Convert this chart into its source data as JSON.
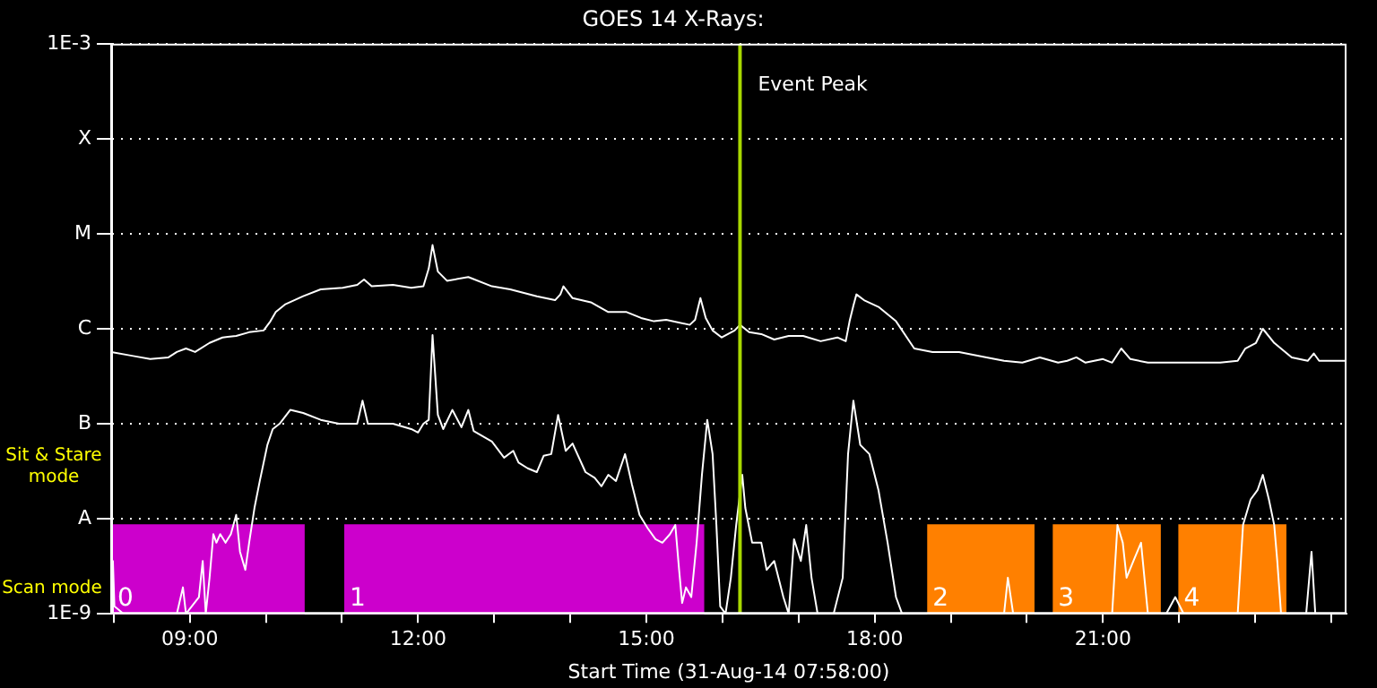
{
  "chart_data": {
    "type": "line",
    "title": "GOES 14 X-Rays:",
    "xlabel": "Start Time (31-Aug-14 07:58:00)",
    "annotations": [
      "Sit & Stare mode",
      "Scan mode"
    ],
    "log": "y",
    "grid": "y",
    "legend": false,
    "marker": "none",
    "line_style": "solid",
    "xlim": [
      7.967,
      24.2
    ],
    "xticks": [
      {
        "value": 8,
        "label": null
      },
      {
        "value": 9,
        "label": "09:00"
      },
      {
        "value": 10,
        "label": null
      },
      {
        "value": 11,
        "label": null
      },
      {
        "value": 12,
        "label": "12:00"
      },
      {
        "value": 13,
        "label": null
      },
      {
        "value": 14,
        "label": null
      },
      {
        "value": 15,
        "label": "15:00"
      },
      {
        "value": 16,
        "label": null
      },
      {
        "value": 17,
        "label": null
      },
      {
        "value": 18,
        "label": "18:00"
      },
      {
        "value": 19,
        "label": null
      },
      {
        "value": 20,
        "label": null
      },
      {
        "value": 21,
        "label": "21:00"
      },
      {
        "value": 22,
        "label": null
      },
      {
        "value": 23,
        "label": null
      },
      {
        "value": 24,
        "label": null
      }
    ],
    "ylim": [
      1e-09,
      0.001
    ],
    "yticks": [
      {
        "value": 1e-09,
        "label": "1E-9"
      },
      {
        "value": 1e-08,
        "label": "A"
      },
      {
        "value": 1e-07,
        "label": "B"
      },
      {
        "value": 1e-06,
        "label": "C"
      },
      {
        "value": 1e-05,
        "label": "M"
      },
      {
        "value": 0.0001,
        "label": "X"
      },
      {
        "value": 0.001,
        "label": "1E-3"
      }
    ],
    "ref_lines": [
      {
        "axis": "x",
        "value": 16.23,
        "label": "Event Peak",
        "color": "#a8d800"
      }
    ],
    "bands": [
      {
        "axis": "x",
        "from": 7.98,
        "to": 10.51,
        "label": "0",
        "color": "#cc00cc"
      },
      {
        "axis": "x",
        "from": 11.03,
        "to": 15.76,
        "label": "1",
        "color": "#cc00cc"
      },
      {
        "axis": "x",
        "from": 18.69,
        "to": 20.1,
        "label": "2",
        "color": "#ff8000"
      },
      {
        "axis": "x",
        "from": 20.34,
        "to": 21.76,
        "label": "3",
        "color": "#ff8000"
      },
      {
        "axis": "x",
        "from": 21.99,
        "to": 23.41,
        "label": "4",
        "color": "#ff8000"
      }
    ],
    "series": [
      {
        "color": "#ffffff",
        "x": [
          7.97,
          8.24,
          8.48,
          8.72,
          8.83,
          8.95,
          9.07,
          9.26,
          9.43,
          9.61,
          9.78,
          9.97,
          10.06,
          10.13,
          10.25,
          10.49,
          10.72,
          11.01,
          11.2,
          11.29,
          11.39,
          11.67,
          11.91,
          12.07,
          12.14,
          12.19,
          12.26,
          12.38,
          12.66,
          12.97,
          13.21,
          13.56,
          13.8,
          13.87,
          13.91,
          14.03,
          14.27,
          14.5,
          14.74,
          14.93,
          15.1,
          15.26,
          15.57,
          15.64,
          15.71,
          15.78,
          15.87,
          15.99,
          16.16,
          16.23,
          16.35,
          16.51,
          16.68,
          16.87,
          17.06,
          17.29,
          17.51,
          17.62,
          17.67,
          17.72,
          17.76,
          17.86,
          18.05,
          18.28,
          18.52,
          18.76,
          19.11,
          19.47,
          19.7,
          19.94,
          20.17,
          20.41,
          20.53,
          20.65,
          20.77,
          21.0,
          21.12,
          21.24,
          21.36,
          21.59,
          22.06,
          22.54,
          22.77,
          22.87,
          23.01,
          23.1,
          23.25,
          23.48,
          23.69,
          23.77,
          23.84,
          24.19
        ],
        "values": [
          5.7e-07,
          5.2e-07,
          4.8e-07,
          5e-07,
          5.7e-07,
          6.2e-07,
          5.7e-07,
          7.1e-07,
          8.1e-07,
          8.4e-07,
          9.2e-07,
          9.6e-07,
          1.2e-06,
          1.5e-06,
          1.8e-06,
          2.2e-06,
          2.6e-06,
          2.7e-06,
          2.9e-06,
          3.3e-06,
          2.8e-06,
          2.9e-06,
          2.7e-06,
          2.8e-06,
          4.3e-06,
          7.6e-06,
          4e-06,
          3.2e-06,
          3.5e-06,
          2.8e-06,
          2.6e-06,
          2.2e-06,
          2e-06,
          2.3e-06,
          2.8e-06,
          2.1e-06,
          1.9e-06,
          1.5e-06,
          1.5e-06,
          1.3e-06,
          1.2e-06,
          1.24e-06,
          1.1e-06,
          1.24e-06,
          2.1e-06,
          1.3e-06,
          9.6e-07,
          8.1e-07,
          9.6e-07,
          1.1e-06,
          9.2e-07,
          8.8e-07,
          7.7e-07,
          8.4e-07,
          8.4e-07,
          7.4e-07,
          8.1e-07,
          7.4e-07,
          1.2e-06,
          1.75e-06,
          2.3e-06,
          2e-06,
          1.7e-06,
          1.2e-06,
          6.2e-07,
          5.7e-07,
          5.7e-07,
          5e-07,
          4.6e-07,
          4.4e-07,
          5e-07,
          4.4e-07,
          4.6e-07,
          5e-07,
          4.4e-07,
          4.8e-07,
          4.4e-07,
          6.2e-07,
          4.8e-07,
          4.4e-07,
          4.4e-07,
          4.4e-07,
          4.6e-07,
          6.2e-07,
          7.1e-07,
          1e-06,
          7.1e-07,
          5e-07,
          4.6e-07,
          5.5e-07,
          4.6e-07,
          4.6e-07
        ]
      },
      {
        "color": "#ffffff",
        "x": [
          7.97,
          7.99,
          8.01,
          8.13,
          8.83,
          8.91,
          8.95,
          9.12,
          9.17,
          9.21,
          9.26,
          9.31,
          9.35,
          9.4,
          9.47,
          9.54,
          9.61,
          9.66,
          9.73,
          9.78,
          9.85,
          9.92,
          10.02,
          10.09,
          10.18,
          10.32,
          10.49,
          10.72,
          10.96,
          11.2,
          11.27,
          11.34,
          11.5,
          11.67,
          11.91,
          12.0,
          12.07,
          12.14,
          12.19,
          12.26,
          12.33,
          12.45,
          12.57,
          12.66,
          12.73,
          12.97,
          13.13,
          13.25,
          13.32,
          13.44,
          13.56,
          13.65,
          13.75,
          13.84,
          13.94,
          14.03,
          14.2,
          14.32,
          14.41,
          14.5,
          14.6,
          14.72,
          14.81,
          14.91,
          15.02,
          15.12,
          15.21,
          15.31,
          15.38,
          15.43,
          15.47,
          15.52,
          15.59,
          15.66,
          15.73,
          15.8,
          15.87,
          15.92,
          15.97,
          16.04,
          16.11,
          16.18,
          16.26,
          16.3,
          16.39,
          16.51,
          16.58,
          16.68,
          16.8,
          16.87,
          16.94,
          17.03,
          17.1,
          17.17,
          17.25,
          17.46,
          17.58,
          17.65,
          17.72,
          17.81,
          17.93,
          18.05,
          18.17,
          18.28,
          18.36,
          19.7,
          19.75,
          19.82,
          21.12,
          21.19,
          21.26,
          21.31,
          21.4,
          21.5,
          21.59,
          21.83,
          21.95,
          22.06,
          22.77,
          22.84,
          22.94,
          23.03,
          23.1,
          23.18,
          23.25,
          23.29,
          23.34,
          23.67,
          23.74,
          23.79,
          24.19
        ],
        "values": [
          1e-09,
          3.6e-09,
          1.2e-09,
          1e-09,
          1e-09,
          1.9e-09,
          1e-09,
          1.5e-09,
          3.6e-09,
          1e-09,
          2.4e-09,
          6.9e-09,
          5.6e-09,
          6.9e-09,
          5.6e-09,
          6.9e-09,
          1.1e-08,
          4.5e-09,
          2.9e-09,
          5.6e-09,
          1.3e-08,
          2.5e-08,
          6e-08,
          8.8e-08,
          1e-07,
          1.4e-07,
          1.3e-07,
          1.1e-07,
          1e-07,
          1e-07,
          1.75e-07,
          1e-07,
          1e-07,
          1e-07,
          8.8e-08,
          8.1e-08,
          1e-07,
          1.1e-07,
          8.6e-07,
          1.24e-07,
          8.8e-08,
          1.4e-07,
          9.2e-08,
          1.4e-07,
          8.4e-08,
          6.5e-08,
          4.4e-08,
          5.2e-08,
          3.9e-08,
          3.4e-08,
          3.1e-08,
          4.6e-08,
          4.8e-08,
          1.24e-07,
          5.2e-08,
          6.2e-08,
          3.1e-08,
          2.7e-08,
          2.2e-08,
          2.9e-08,
          2.5e-08,
          4.8e-08,
          2.3e-08,
          1.1e-08,
          7.9e-09,
          6.1e-09,
          5.6e-09,
          6.9e-09,
          8.6e-09,
          2.9e-09,
          1.3e-09,
          1.9e-09,
          1.5e-09,
          5.6e-09,
          2.9e-08,
          1.1e-07,
          4.8e-08,
          8.6e-09,
          1.2e-09,
          1e-09,
          2.4e-09,
          8.6e-09,
          2.9e-08,
          1.3e-08,
          5.6e-09,
          5.6e-09,
          2.9e-09,
          3.6e-09,
          1.5e-09,
          1e-09,
          6.1e-09,
          3.6e-09,
          8.6e-09,
          2.4e-09,
          1e-09,
          1e-09,
          2.4e-09,
          4.8e-08,
          1.75e-07,
          6e-08,
          4.8e-08,
          2e-08,
          5.6e-09,
          1.5e-09,
          1e-09,
          1e-09,
          2.4e-09,
          1e-09,
          1e-09,
          8.6e-09,
          5.6e-09,
          2.4e-09,
          3.6e-09,
          5.6e-09,
          1e-09,
          1e-09,
          1.5e-09,
          1e-09,
          1e-09,
          8.6e-09,
          1.6e-08,
          2e-08,
          2.9e-08,
          1.6e-08,
          8.6e-09,
          3.6e-09,
          1e-09,
          1e-09,
          4.5e-09,
          1e-09,
          1e-09
        ]
      }
    ]
  }
}
